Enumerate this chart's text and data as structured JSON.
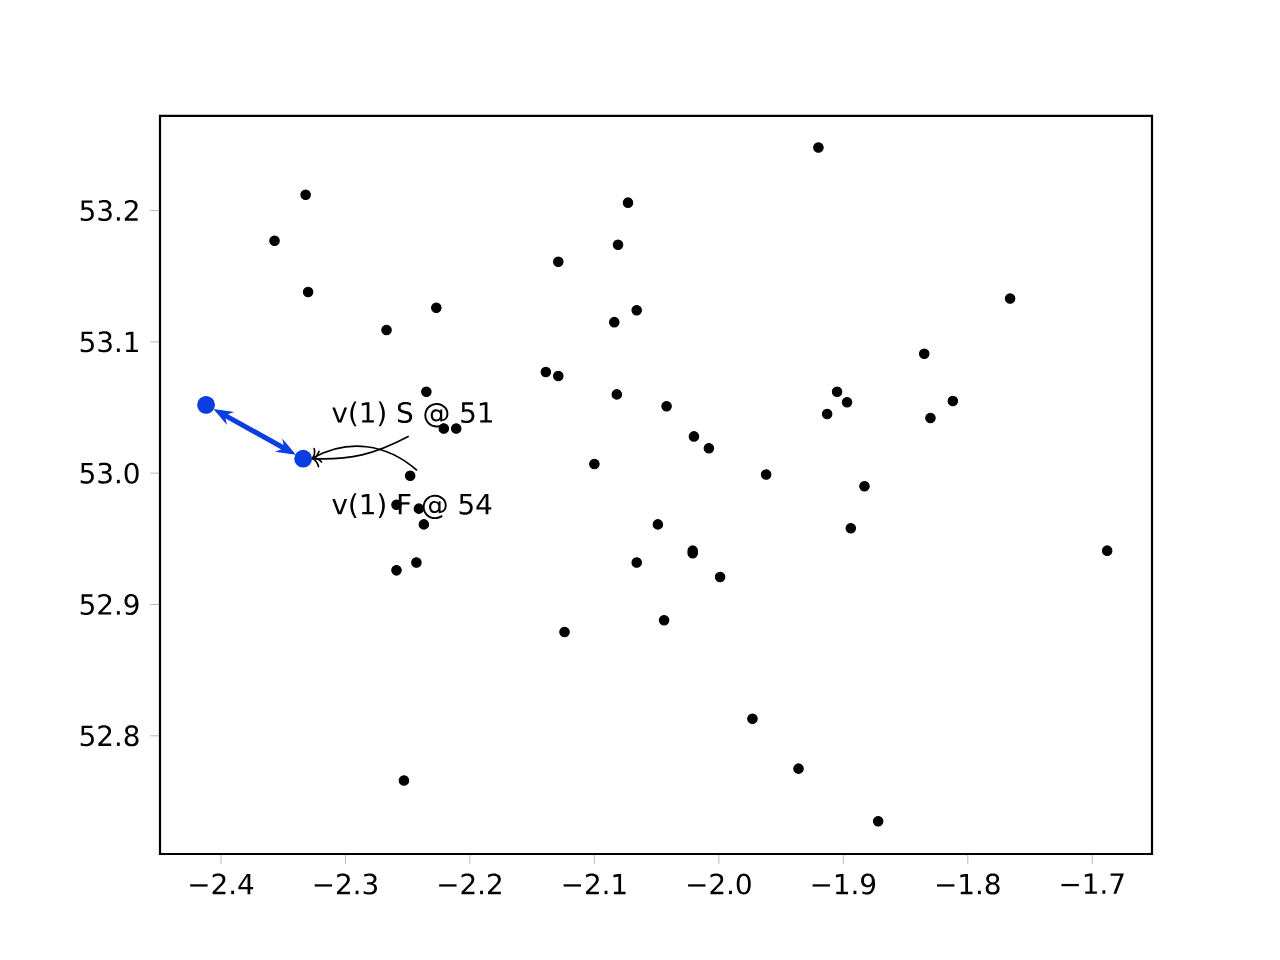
{
  "chart_data": {
    "type": "scatter",
    "xlim": [
      -2.449,
      -1.652
    ],
    "ylim": [
      52.71,
      53.272
    ],
    "xticks": [
      {
        "value": -2.4,
        "label": "−2.4"
      },
      {
        "value": -2.3,
        "label": "−2.3"
      },
      {
        "value": -2.2,
        "label": "−2.2"
      },
      {
        "value": -2.1,
        "label": "−2.1"
      },
      {
        "value": -2.0,
        "label": "−2.0"
      },
      {
        "value": -1.9,
        "label": "−1.9"
      },
      {
        "value": -1.8,
        "label": "−1.8"
      },
      {
        "value": -1.7,
        "label": "−1.7"
      }
    ],
    "yticks": [
      52.8,
      52.9,
      {
        "value": 53.0,
        "label": "53.0"
      },
      53.1,
      53.2
    ],
    "series": [
      {
        "color": "#000000",
        "x": [
          -2.332,
          -2.357,
          -2.33,
          -2.267,
          -2.227,
          -2.235,
          -2.221,
          -2.211,
          -2.248,
          -2.129,
          -2.139,
          -2.129,
          -2.073,
          -2.081,
          -2.066,
          -2.084,
          -2.082,
          -2.1,
          -2.259,
          -2.241,
          -2.237,
          -2.259,
          -2.243,
          -2.124,
          -2.253,
          -2.066,
          -2.049,
          -1.92,
          -1.766,
          -1.835,
          -2.042,
          -2.02,
          -2.008,
          -1.962,
          -1.883,
          -1.905,
          -1.897,
          -1.913,
          -1.83,
          -1.812,
          -2.021,
          -2.021,
          -1.999,
          -2.044,
          -1.894,
          -1.688,
          -1.973,
          -1.936,
          -1.872
        ],
        "values": [
          53.212,
          53.177,
          53.138,
          53.109,
          53.126,
          53.062,
          53.034,
          53.034,
          52.998,
          53.161,
          53.077,
          53.074,
          53.206,
          53.174,
          53.124,
          53.115,
          53.06,
          53.007,
          52.976,
          52.973,
          52.961,
          52.926,
          52.932,
          52.879,
          52.766,
          52.932,
          52.961,
          53.248,
          53.133,
          53.091,
          53.051,
          53.028,
          53.019,
          52.999,
          52.99,
          53.062,
          53.054,
          53.045,
          53.042,
          53.055,
          52.941,
          52.939,
          52.921,
          52.888,
          52.958,
          52.941,
          52.813,
          52.775,
          52.735
        ]
      },
      {
        "color": "#0a3ee0",
        "x": [
          -2.412,
          -2.334
        ],
        "values": [
          53.052,
          53.011
        ]
      }
    ],
    "annotations": [
      {
        "text": "v(1) S @ 51",
        "x": -2.334,
        "y": 53.011
      },
      {
        "text": "v(1) F @ 54",
        "x": -2.334,
        "y": 53.011
      }
    ]
  }
}
